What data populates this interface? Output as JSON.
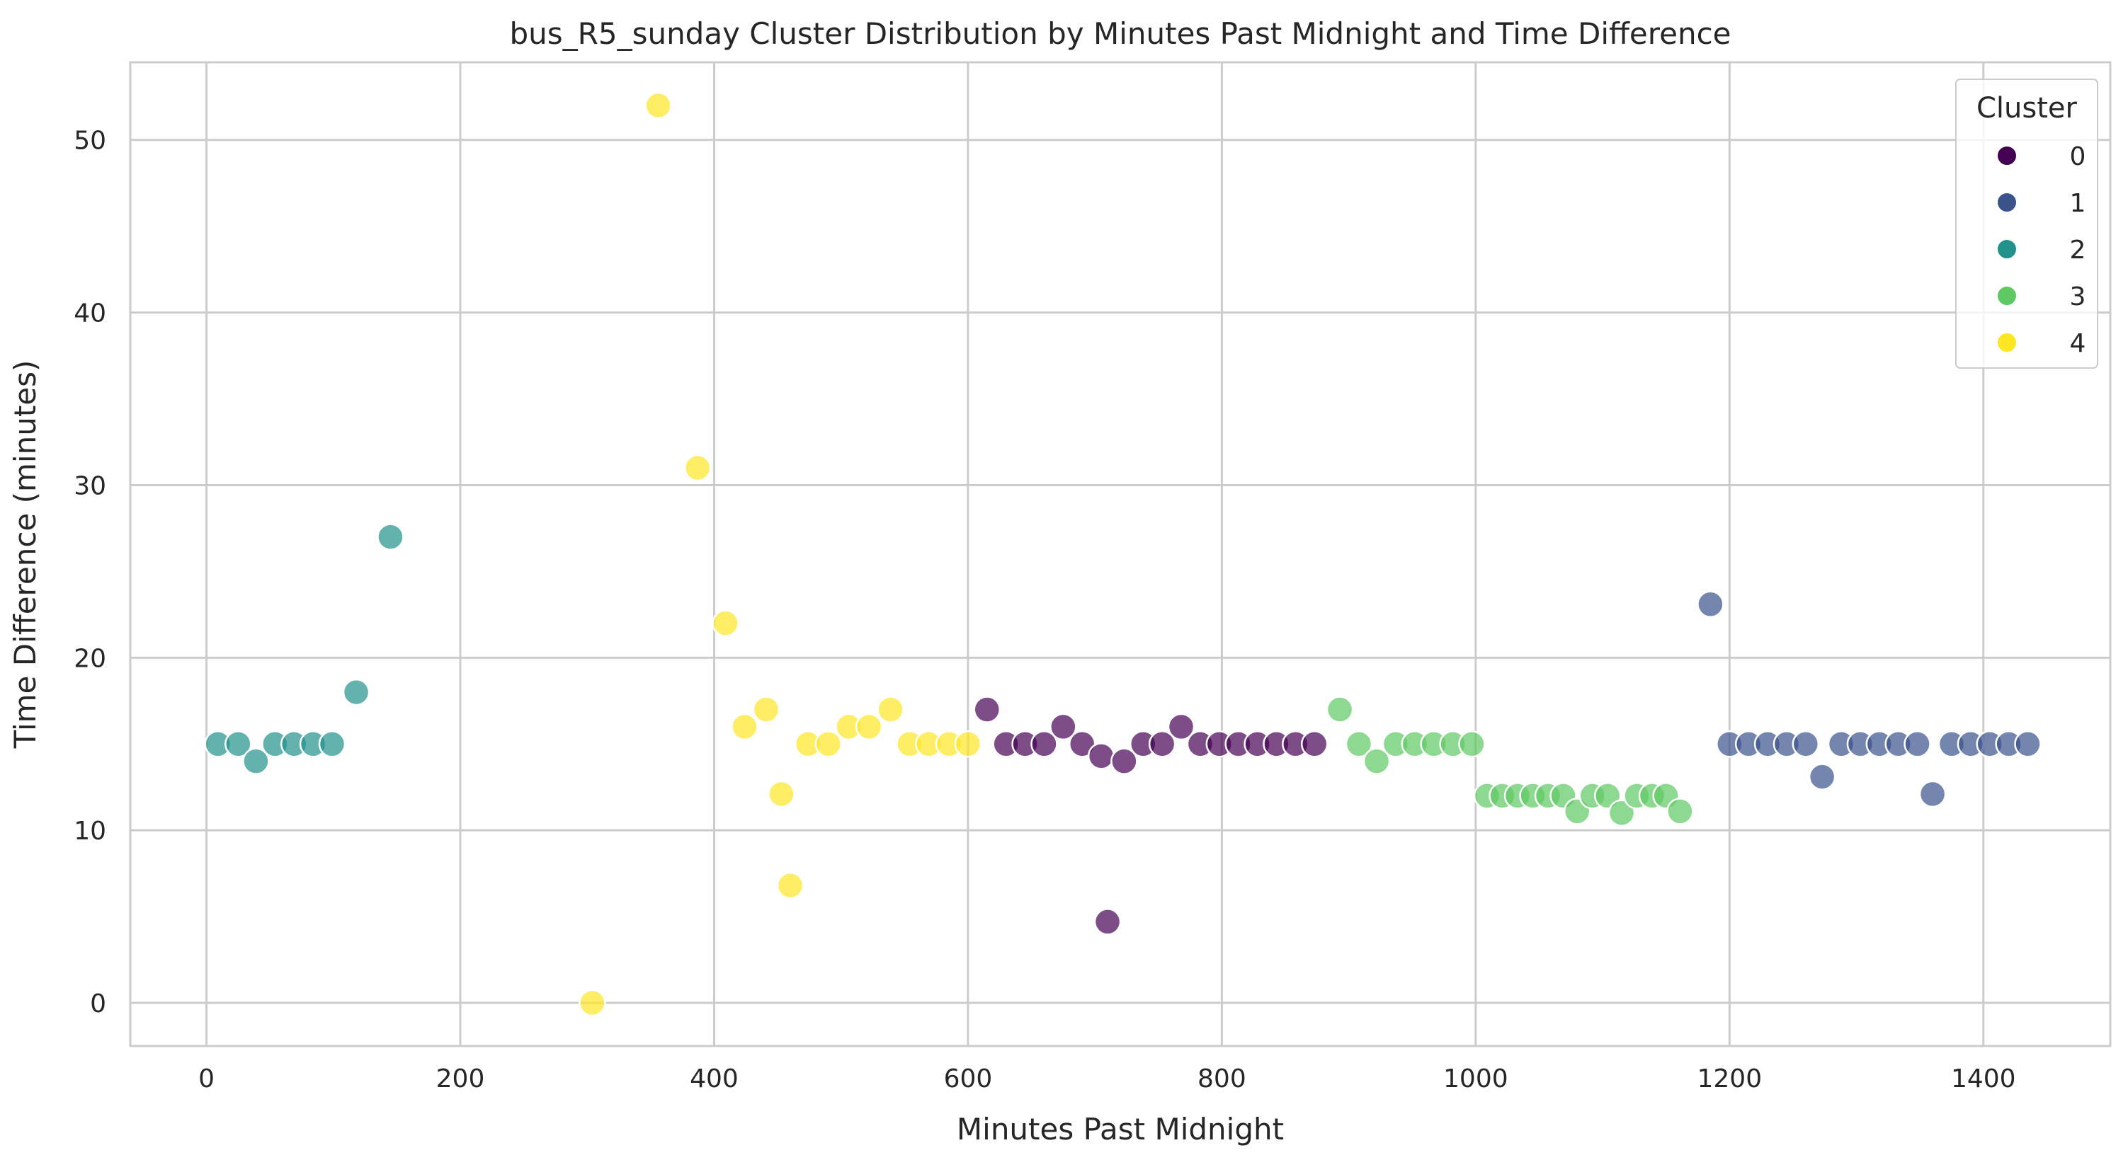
{
  "chart_data": {
    "type": "scatter",
    "title": "bus_R5_sunday Cluster Distribution by Minutes Past Midnight and Time Difference",
    "xlabel": "Minutes Past Midnight",
    "ylabel": "Time Difference (minutes)",
    "xlim": [
      -60,
      1500
    ],
    "ylim": [
      -2.5,
      54.5
    ],
    "xticks": [
      0,
      200,
      400,
      600,
      800,
      1000,
      1200,
      1400
    ],
    "yticks": [
      0,
      10,
      20,
      30,
      40,
      50
    ],
    "grid": true,
    "legend": {
      "title": "Cluster",
      "placement": "top-right",
      "entries": [
        {
          "label": "0",
          "color": "#440154"
        },
        {
          "label": "1",
          "color": "#3b528b"
        },
        {
          "label": "2",
          "color": "#21918c"
        },
        {
          "label": "3",
          "color": "#5ec962"
        },
        {
          "label": "4",
          "color": "#fde725"
        }
      ]
    },
    "series": [
      {
        "name": "0",
        "color": "#440154",
        "points": [
          [
            615,
            17
          ],
          [
            630,
            15
          ],
          [
            645,
            15
          ],
          [
            660,
            15
          ],
          [
            675,
            16
          ],
          [
            690,
            15
          ],
          [
            705,
            14.3
          ],
          [
            710,
            4.7
          ],
          [
            723,
            14
          ],
          [
            738,
            15
          ],
          [
            753,
            15
          ],
          [
            768,
            16
          ],
          [
            783,
            15
          ],
          [
            798,
            15
          ],
          [
            813,
            15
          ],
          [
            828,
            15
          ],
          [
            843,
            15
          ],
          [
            858,
            15
          ],
          [
            873,
            15
          ]
        ]
      },
      {
        "name": "1",
        "color": "#3b528b",
        "points": [
          [
            1185,
            23.1
          ],
          [
            1200,
            15
          ],
          [
            1215,
            15
          ],
          [
            1230,
            15
          ],
          [
            1245,
            15
          ],
          [
            1260,
            15
          ],
          [
            1273,
            13.1
          ],
          [
            1288,
            15
          ],
          [
            1303,
            15
          ],
          [
            1318,
            15
          ],
          [
            1333,
            15
          ],
          [
            1348,
            15
          ],
          [
            1360,
            12.1
          ],
          [
            1375,
            15
          ],
          [
            1390,
            15
          ],
          [
            1405,
            15
          ],
          [
            1420,
            15
          ],
          [
            1435,
            15
          ]
        ]
      },
      {
        "name": "2",
        "color": "#21918c",
        "points": [
          [
            9,
            15
          ],
          [
            25,
            15
          ],
          [
            39,
            14
          ],
          [
            54,
            15
          ],
          [
            69,
            15
          ],
          [
            84,
            15
          ],
          [
            99,
            15
          ],
          [
            118,
            18
          ],
          [
            145,
            27
          ]
        ]
      },
      {
        "name": "3",
        "color": "#5ec962",
        "points": [
          [
            893,
            17
          ],
          [
            908,
            15
          ],
          [
            922,
            14
          ],
          [
            937,
            15
          ],
          [
            952,
            15
          ],
          [
            967,
            15
          ],
          [
            982,
            15
          ],
          [
            997,
            15
          ],
          [
            1009,
            12
          ],
          [
            1021,
            12
          ],
          [
            1033,
            12
          ],
          [
            1045,
            12
          ],
          [
            1057,
            12
          ],
          [
            1069,
            12
          ],
          [
            1080,
            11.1
          ],
          [
            1092,
            12
          ],
          [
            1104,
            12
          ],
          [
            1115,
            11
          ],
          [
            1127,
            12
          ],
          [
            1139,
            12
          ],
          [
            1150,
            12
          ],
          [
            1161,
            11.1
          ]
        ]
      },
      {
        "name": "4",
        "color": "#fde725",
        "points": [
          [
            304,
            0
          ],
          [
            356,
            52
          ],
          [
            387,
            31
          ],
          [
            409,
            22
          ],
          [
            424,
            16
          ],
          [
            441,
            17
          ],
          [
            453,
            12.1
          ],
          [
            460,
            6.8
          ],
          [
            474,
            15
          ],
          [
            490,
            15
          ],
          [
            506,
            16
          ],
          [
            522,
            16
          ],
          [
            539,
            17
          ],
          [
            554,
            15
          ],
          [
            569,
            15
          ],
          [
            585,
            15
          ],
          [
            600,
            15
          ]
        ]
      }
    ]
  }
}
